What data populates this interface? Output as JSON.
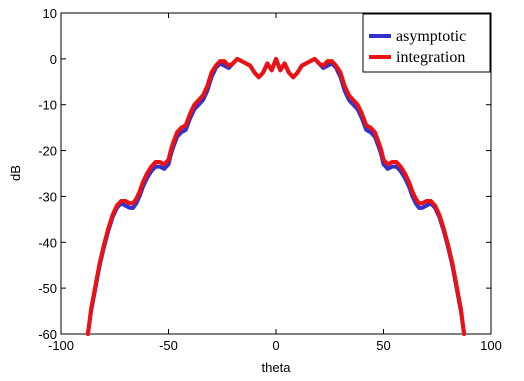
{
  "chart_data": {
    "type": "line",
    "xlabel": "theta",
    "ylabel": "dB",
    "xlim": [
      -100,
      100
    ],
    "ylim": [
      -60,
      10
    ],
    "xticks": [
      -100,
      -50,
      0,
      50,
      100
    ],
    "yticks": [
      10,
      0,
      -10,
      -20,
      -30,
      -40,
      -50,
      -60
    ],
    "xtick_labels": [
      "-100",
      "-50",
      "0",
      "50",
      "100"
    ],
    "ytick_labels": [
      "10",
      "0",
      "-10",
      "-20",
      "-30",
      "-40",
      "-50",
      "-60"
    ],
    "grid": false,
    "legend": "top-right",
    "series": [
      {
        "name": "asymptotic",
        "color": "#3333cc",
        "x": [
          -87.5,
          -86,
          -84,
          -82,
          -80,
          -78,
          -76,
          -74,
          -72,
          -70,
          -68,
          -66.5,
          -65,
          -63.5,
          -62,
          -60,
          -58,
          -56,
          -54,
          -52,
          -50,
          -49,
          -48,
          -46,
          -44,
          -42,
          -40,
          -38,
          -36,
          -34,
          -32,
          -30,
          -28,
          -26,
          -24,
          -22,
          -20,
          -18,
          -16,
          -14,
          -12,
          -10,
          -8,
          -6,
          -4,
          -2,
          0,
          2,
          4,
          6,
          8,
          10,
          12,
          14,
          16,
          18,
          20,
          22,
          24,
          26,
          28,
          30,
          32,
          34,
          36,
          38,
          40,
          42,
          44,
          46,
          48,
          49,
          50,
          52,
          54,
          56,
          58,
          60,
          62,
          63.5,
          65,
          66.5,
          68,
          70,
          72,
          74,
          76,
          78,
          80,
          82,
          84,
          86,
          87.5
        ],
        "y": [
          -60,
          -55,
          -50,
          -45,
          -41,
          -37.5,
          -34.5,
          -32.5,
          -31.5,
          -32,
          -32.5,
          -32.5,
          -31.5,
          -30,
          -28,
          -26,
          -24.5,
          -23.5,
          -23.5,
          -24,
          -23,
          -21,
          -19.5,
          -17,
          -16,
          -15.5,
          -13,
          -11,
          -10,
          -9,
          -7,
          -4,
          -2,
          -1,
          -1.5,
          -2,
          -1,
          0,
          -0.5,
          -1,
          -1.5,
          -3,
          -4,
          -3,
          -1,
          -2.5,
          0,
          -2.5,
          -1,
          -3,
          -4,
          -3,
          -1.5,
          -1,
          -0.5,
          0,
          -1,
          -2,
          -1.5,
          -1,
          -2,
          -4,
          -7,
          -9,
          -10,
          -11,
          -13,
          -15.5,
          -16,
          -17,
          -19.5,
          -21,
          -23,
          -24,
          -23.5,
          -23.5,
          -24.5,
          -26,
          -28,
          -30,
          -31.5,
          -32.5,
          -32.5,
          -32,
          -31.5,
          -32.5,
          -34.5,
          -37.5,
          -41,
          -45,
          -50,
          -55,
          -60
        ]
      },
      {
        "name": "integration",
        "color": "#ee1111",
        "x": [
          -87.5,
          -86,
          -84,
          -82,
          -80,
          -78,
          -76,
          -74,
          -72,
          -70,
          -68,
          -66.5,
          -65,
          -63.5,
          -62,
          -60,
          -58,
          -56,
          -54,
          -52,
          -50,
          -49,
          -48,
          -46,
          -44,
          -42,
          -40,
          -38,
          -36,
          -34,
          -32,
          -30,
          -28,
          -26,
          -24,
          -22,
          -20,
          -18,
          -16,
          -14,
          -12,
          -10,
          -8,
          -6,
          -4,
          -2,
          0,
          2,
          4,
          6,
          8,
          10,
          12,
          14,
          16,
          18,
          20,
          22,
          24,
          26,
          28,
          30,
          32,
          34,
          36,
          38,
          40,
          42,
          44,
          46,
          48,
          49,
          50,
          52,
          54,
          56,
          58,
          60,
          62,
          63.5,
          65,
          66.5,
          68,
          70,
          72,
          74,
          76,
          78,
          80,
          82,
          84,
          86,
          87.5
        ],
        "y": [
          -60,
          -54.5,
          -49.5,
          -44.5,
          -40.5,
          -37,
          -34,
          -32,
          -31,
          -31,
          -31.5,
          -31.5,
          -30.5,
          -29,
          -27,
          -25,
          -23.5,
          -22.5,
          -22.5,
          -23,
          -22,
          -20,
          -18.5,
          -16,
          -15,
          -14.5,
          -12,
          -10,
          -9,
          -8,
          -6,
          -3,
          -1.5,
          -0.5,
          -0.5,
          -1.5,
          -1,
          0,
          -0.5,
          -1,
          -1.5,
          -3,
          -4,
          -3,
          -1,
          -2.5,
          0,
          -2.5,
          -1,
          -3,
          -4,
          -3,
          -1.5,
          -1,
          -0.5,
          0,
          -1,
          -1.5,
          -0.5,
          -0.5,
          -1.5,
          -3,
          -6,
          -8,
          -9,
          -10,
          -12,
          -14.5,
          -15,
          -16,
          -18.5,
          -20,
          -22,
          -23,
          -22.5,
          -22.5,
          -23.5,
          -25,
          -27,
          -29,
          -30.5,
          -31.5,
          -31.5,
          -31,
          -31,
          -32,
          -34,
          -37,
          -40.5,
          -44.5,
          -49.5,
          -54.5,
          -60
        ]
      }
    ]
  }
}
